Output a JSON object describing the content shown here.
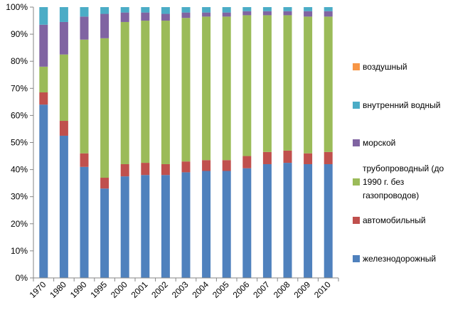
{
  "chart_data": {
    "type": "bar",
    "stacked": true,
    "percent_stacked": true,
    "categories": [
      "1970",
      "1980",
      "1990",
      "1995",
      "2000",
      "2001",
      "2002",
      "2003",
      "2004",
      "2005",
      "2006",
      "2007",
      "2008",
      "2009",
      "2010"
    ],
    "ylim": [
      0,
      100
    ],
    "y_ticks": [
      "0%",
      "10%",
      "20%",
      "30%",
      "40%",
      "50%",
      "60%",
      "70%",
      "80%",
      "90%",
      "100%"
    ],
    "grid": false,
    "legend_position": "right",
    "series": [
      {
        "name": "железнодорожный",
        "color": "#4F81BD",
        "values": [
          64,
          52.5,
          41,
          33,
          37.5,
          38,
          38,
          39,
          39.5,
          39.5,
          40.5,
          42,
          42.5,
          42,
          42
        ]
      },
      {
        "name": "автомобильный",
        "color": "#C0504D",
        "values": [
          4.5,
          5.5,
          5,
          4,
          4.5,
          4.5,
          4,
          4,
          4,
          4,
          4.5,
          4.5,
          4.5,
          4,
          4.5
        ]
      },
      {
        "name": "трубопроводный (до 1990 г. без газопроводов)",
        "color": "#9BBB59",
        "values": [
          9.5,
          24.5,
          42,
          51.5,
          52.5,
          52.5,
          53,
          53,
          53,
          53,
          52,
          50.5,
          50,
          50.5,
          50
        ]
      },
      {
        "name": "морской",
        "color": "#8064A2",
        "values": [
          15.5,
          12,
          8.5,
          9,
          3.5,
          3,
          2.5,
          2,
          1.5,
          1.5,
          1.5,
          1.5,
          1.5,
          2,
          2
        ]
      },
      {
        "name": "внутренний водный",
        "color": "#4BACC6",
        "values": [
          6.5,
          5.5,
          3.5,
          2.5,
          2,
          2,
          2.5,
          2,
          2,
          2,
          1.5,
          1.5,
          1.5,
          1.5,
          1.5
        ]
      },
      {
        "name": "воздушный",
        "color": "#F79646",
        "values": [
          0,
          0,
          0,
          0,
          0,
          0,
          0,
          0,
          0,
          0,
          0,
          0,
          0,
          0,
          0
        ]
      }
    ],
    "legend_order": [
      "воздушный",
      "внутренний водный",
      "морской",
      "трубопроводный (до 1990 г. без газопроводов)",
      "автомобильный",
      "железнодорожный"
    ],
    "legend_display": {
      "воздушный": [
        "воздушный"
      ],
      "внутренний водный": [
        "внутренний водный"
      ],
      "морской": [
        "морской"
      ],
      "трубопроводный (до 1990 г. без газопроводов)": [
        "трубопроводный (до",
        "1990 г. без",
        "газопроводов)"
      ],
      "автомобильный": [
        "автомобильный"
      ],
      "железнодорожный": [
        "железнодорожный"
      ]
    }
  }
}
